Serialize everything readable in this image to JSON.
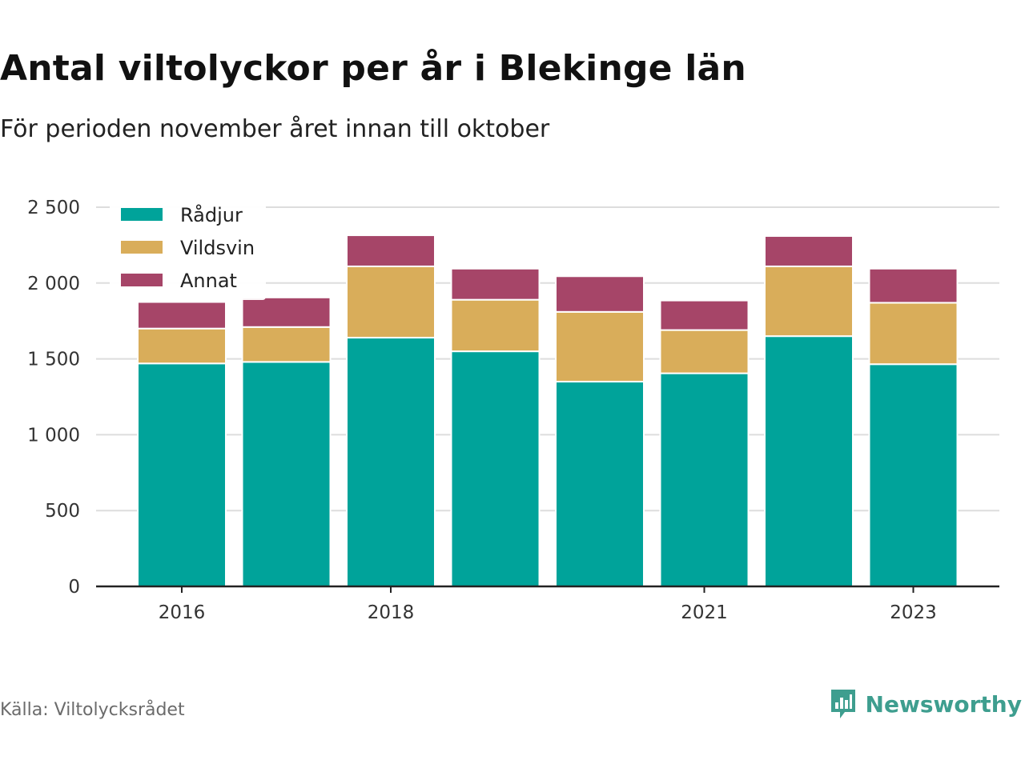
{
  "title": "Antal viltolyckor per år i Blekinge län",
  "subtitle": "För perioden november året innan till oktober",
  "source": "Källa: Viltolycksrådet",
  "brand": "Newsworthy",
  "colors": {
    "brand": "#3e9e8f",
    "grid": "#dddddd",
    "axis": "#222222"
  },
  "chart_data": {
    "type": "bar",
    "stacked": true,
    "categories": [
      "2016",
      "2017",
      "2018",
      "2019",
      "2020",
      "2021",
      "2022",
      "2023"
    ],
    "x_tick_labels": [
      "2016",
      "",
      "2018",
      "",
      "",
      "2021",
      "",
      "2023"
    ],
    "series": [
      {
        "name": "Rådjur",
        "color": "#00a39a",
        "values": [
          1470,
          1480,
          1640,
          1550,
          1350,
          1405,
          1650,
          1465
        ]
      },
      {
        "name": "Vildsvin",
        "color": "#d9ad5a",
        "values": [
          230,
          230,
          470,
          340,
          460,
          285,
          460,
          405
        ]
      },
      {
        "name": "Annat",
        "color": "#a64568",
        "values": [
          175,
          195,
          205,
          205,
          235,
          195,
          200,
          225
        ]
      }
    ],
    "y_ticks": [
      "0",
      "500",
      "1 000",
      "1 500",
      "2 000",
      "2 500"
    ],
    "ylim": [
      0,
      2500
    ],
    "grid": true,
    "legend_position": "top-left"
  }
}
